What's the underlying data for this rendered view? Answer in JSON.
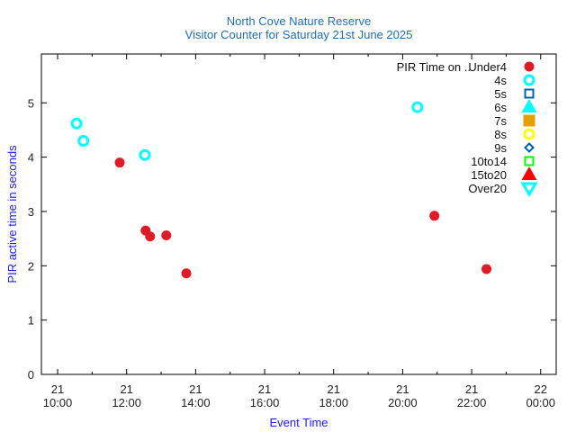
{
  "chart_data": {
    "type": "scatter",
    "title": "North Cove Nature Reserve",
    "subtitle": "Visitor Counter for Saturday 21st June 2025",
    "xlabel": "Event Time",
    "ylabel": "PIR active time in seconds",
    "xlim_hours": [
      9.53,
      24.45
    ],
    "ylim": [
      0,
      5.9
    ],
    "x_ticks": [
      {
        "hour": 10,
        "date": "21",
        "time": "10:00"
      },
      {
        "hour": 12,
        "date": "21",
        "time": "12:00"
      },
      {
        "hour": 14,
        "date": "21",
        "time": "14:00"
      },
      {
        "hour": 16,
        "date": "21",
        "time": "16:00"
      },
      {
        "hour": 18,
        "date": "21",
        "time": "18:00"
      },
      {
        "hour": 20,
        "date": "21",
        "time": "20:00"
      },
      {
        "hour": 22,
        "date": "21",
        "time": "22:00"
      },
      {
        "hour": 24,
        "date": "22",
        "time": "00:00"
      }
    ],
    "y_ticks": [
      "0",
      "1",
      "2",
      "3",
      "4",
      "5"
    ],
    "legend_title": "PIR Time on ..",
    "legend_position": "top-right",
    "series": [
      {
        "name": "Under4",
        "marker": "filled-circle",
        "color": "#dd1c27",
        "points": [
          {
            "time": "11:48",
            "hour": 11.8,
            "value": 3.9
          },
          {
            "time": "12:33",
            "hour": 12.55,
            "value": 2.65
          },
          {
            "time": "12:41",
            "hour": 12.68,
            "value": 2.54
          },
          {
            "time": "13:09",
            "hour": 13.15,
            "value": 2.56
          },
          {
            "time": "13:44",
            "hour": 13.73,
            "value": 1.86
          },
          {
            "time": "20:55",
            "hour": 20.92,
            "value": 2.92
          },
          {
            "time": "22:26",
            "hour": 22.43,
            "value": 1.94
          }
        ]
      },
      {
        "name": "4s",
        "marker": "open-circle",
        "color": "#00ffff",
        "points": [
          {
            "time": "10:33",
            "hour": 10.55,
            "value": 4.62
          },
          {
            "time": "10:45",
            "hour": 10.75,
            "value": 4.3
          },
          {
            "time": "12:32",
            "hour": 12.53,
            "value": 4.04
          },
          {
            "time": "20:26",
            "hour": 20.43,
            "value": 4.92
          }
        ]
      },
      {
        "name": "5s",
        "marker": "open-square",
        "color": "#0060ad",
        "points": []
      },
      {
        "name": "6s",
        "marker": "filled-triangle-up",
        "color": "#00ffff",
        "points": []
      },
      {
        "name": "7s",
        "marker": "filled-square",
        "color": "#e69f00",
        "points": []
      },
      {
        "name": "8s",
        "marker": "open-circle",
        "color": "#ffff00",
        "points": []
      },
      {
        "name": "9s",
        "marker": "open-diamond",
        "color": "#0060ad",
        "points": []
      },
      {
        "name": "10to14",
        "marker": "open-square",
        "color": "#00ff00",
        "points": []
      },
      {
        "name": "15to20",
        "marker": "filled-triangle-up",
        "color": "#ff0000",
        "points": []
      },
      {
        "name": "Over20",
        "marker": "open-triangle-down",
        "color": "#00ffff",
        "points": []
      }
    ]
  }
}
